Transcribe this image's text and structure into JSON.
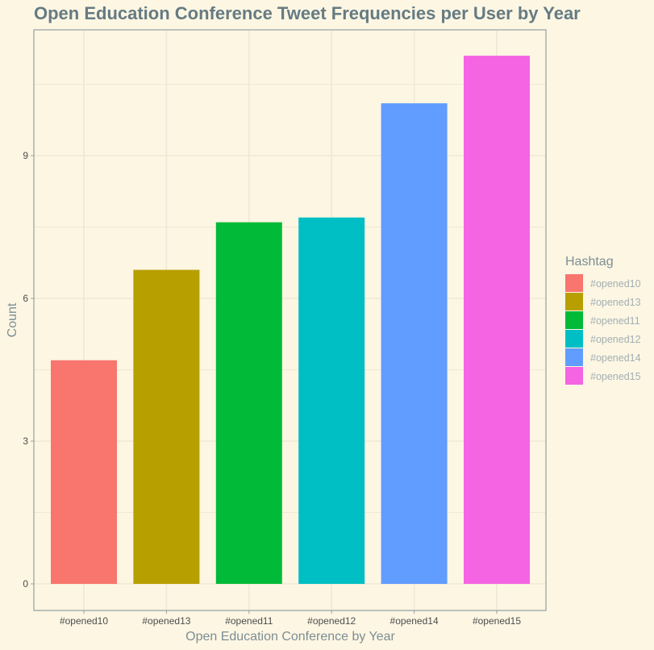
{
  "chart_data": {
    "type": "bar",
    "title": "Open Education Conference Tweet Frequencies per User by Year",
    "xlabel": "Open Education Conference by Year",
    "ylabel": "Count",
    "categories": [
      "#opened10",
      "#opened13",
      "#opened11",
      "#opened12",
      "#opened14",
      "#opened15"
    ],
    "values": [
      4.7,
      6.6,
      7.6,
      7.7,
      10.1,
      11.1
    ],
    "colors": [
      "#F8766D",
      "#B79F00",
      "#00BA38",
      "#00BFC4",
      "#619CFF",
      "#F564E3"
    ],
    "ylim": [
      0,
      11.7
    ],
    "yticks": [
      0,
      3,
      6,
      9
    ],
    "grid": true,
    "legend": {
      "title": "Hashtag",
      "placement": "right",
      "entries": [
        "#opened10",
        "#opened13",
        "#opened11",
        "#opened12",
        "#opened14",
        "#opened15"
      ]
    },
    "style": {
      "background": "#FDF6E3",
      "grid_color": "#EEE8D5",
      "border_color": "#93A1A1",
      "title_color": "#657B83"
    }
  }
}
